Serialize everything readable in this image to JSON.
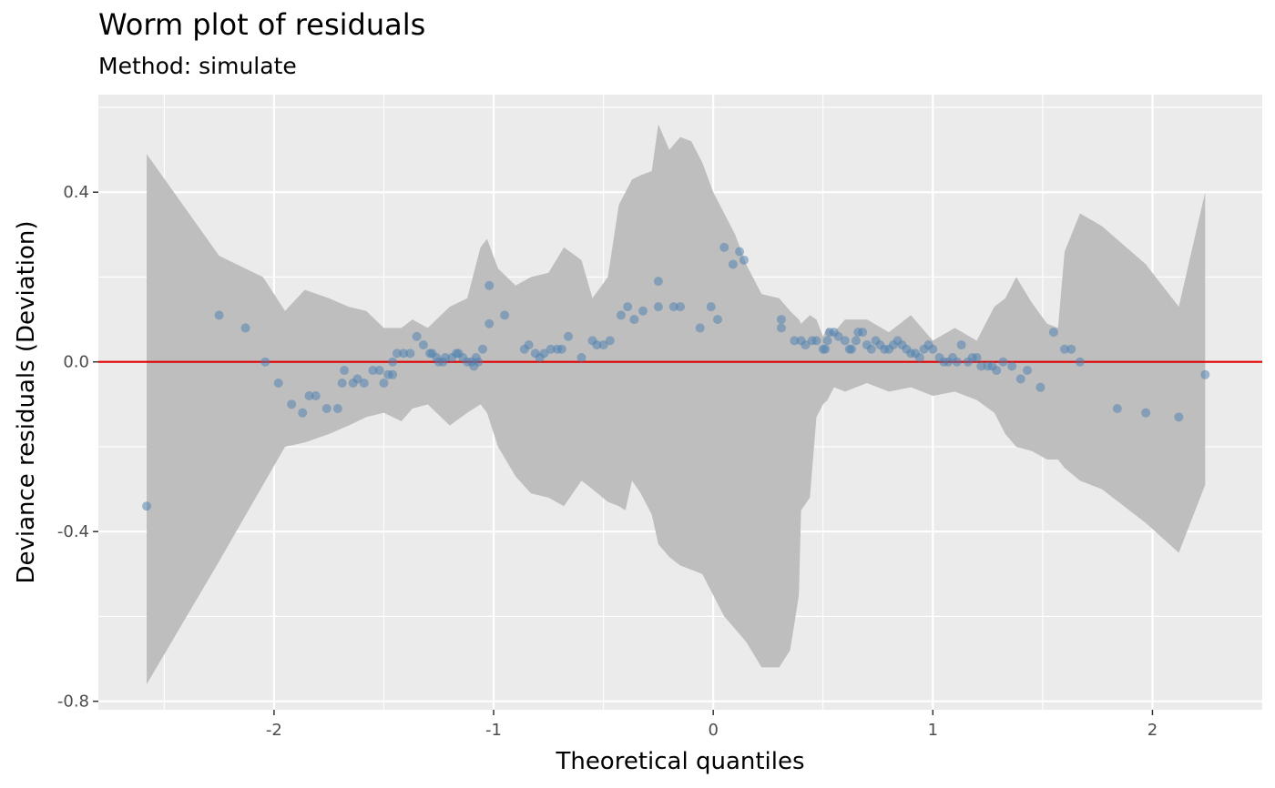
{
  "chart_data": {
    "type": "scatter",
    "title": "Worm plot of residuals",
    "subtitle": "Method: simulate",
    "xlabel": "Theoretical quantiles",
    "ylabel": "Deviance residuals (Deviation)",
    "xlim": [
      -2.8,
      2.5
    ],
    "ylim": [
      -0.82,
      0.63
    ],
    "x_ticks": [
      -2,
      -1,
      0,
      1,
      2
    ],
    "x_tick_labels": [
      "-2",
      "-1",
      "0",
      "1",
      "2"
    ],
    "y_ticks": [
      -0.8,
      -0.4,
      0.0,
      0.4
    ],
    "y_tick_labels": [
      "-0.8",
      "-0.4",
      "0.0",
      "0.4"
    ],
    "grid": true,
    "reference_line": {
      "y": 0,
      "color": "#e00000"
    },
    "colors": {
      "panel": "#ebebeb",
      "grid": "#ffffff",
      "band": "#bebebe",
      "points": "#4a7eb0",
      "reference_line": "#e00000"
    },
    "band": {
      "x": [
        -2.58,
        -2.25,
        -2.05,
        -1.95,
        -1.86,
        -1.75,
        -1.66,
        -1.58,
        -1.5,
        -1.42,
        -1.37,
        -1.3,
        -1.2,
        -1.12,
        -1.06,
        -1.03,
        -0.98,
        -0.9,
        -0.83,
        -0.75,
        -0.68,
        -0.6,
        -0.55,
        -0.48,
        -0.43,
        -0.4,
        -0.37,
        -0.33,
        -0.28,
        -0.25,
        -0.2,
        -0.15,
        -0.1,
        -0.05,
        0.0,
        0.05,
        0.1,
        0.15,
        0.22,
        0.3,
        0.35,
        0.39,
        0.4,
        0.44,
        0.47,
        0.5,
        0.52,
        0.55,
        0.6,
        0.7,
        0.8,
        0.9,
        1.0,
        1.1,
        1.2,
        1.28,
        1.33,
        1.38,
        1.45,
        1.52,
        1.57,
        1.6,
        1.67,
        1.77,
        1.97,
        2.12,
        2.24
      ],
      "upper": [
        0.49,
        0.25,
        0.2,
        0.12,
        0.17,
        0.15,
        0.13,
        0.12,
        0.08,
        0.08,
        0.1,
        0.08,
        0.13,
        0.15,
        0.27,
        0.29,
        0.22,
        0.18,
        0.2,
        0.21,
        0.27,
        0.24,
        0.15,
        0.2,
        0.37,
        0.4,
        0.43,
        0.44,
        0.45,
        0.56,
        0.5,
        0.53,
        0.52,
        0.47,
        0.4,
        0.35,
        0.3,
        0.23,
        0.16,
        0.15,
        0.12,
        0.1,
        0.09,
        0.11,
        0.1,
        0.06,
        0.08,
        0.07,
        0.1,
        0.1,
        0.07,
        0.11,
        0.05,
        0.08,
        0.05,
        0.13,
        0.15,
        0.2,
        0.14,
        0.09,
        0.08,
        0.26,
        0.35,
        0.32,
        0.23,
        0.13,
        0.4
      ],
      "lower": [
        -0.76,
        -0.47,
        -0.29,
        -0.2,
        -0.19,
        -0.17,
        -0.15,
        -0.13,
        -0.12,
        -0.14,
        -0.11,
        -0.1,
        -0.15,
        -0.12,
        -0.1,
        -0.12,
        -0.2,
        -0.27,
        -0.31,
        -0.32,
        -0.34,
        -0.28,
        -0.3,
        -0.33,
        -0.34,
        -0.35,
        -0.28,
        -0.31,
        -0.36,
        -0.43,
        -0.46,
        -0.48,
        -0.49,
        -0.5,
        -0.55,
        -0.6,
        -0.63,
        -0.66,
        -0.72,
        -0.72,
        -0.68,
        -0.55,
        -0.35,
        -0.32,
        -0.13,
        -0.1,
        -0.09,
        -0.06,
        -0.07,
        -0.05,
        -0.07,
        -0.06,
        -0.08,
        -0.07,
        -0.09,
        -0.12,
        -0.17,
        -0.2,
        -0.21,
        -0.23,
        -0.23,
        -0.25,
        -0.28,
        -0.3,
        -0.38,
        -0.45,
        -0.29
      ]
    },
    "points": [
      [
        -2.58,
        -0.34
      ],
      [
        -2.25,
        0.11
      ],
      [
        -2.13,
        0.08
      ],
      [
        -2.04,
        0.0
      ],
      [
        -1.98,
        -0.05
      ],
      [
        -1.92,
        -0.1
      ],
      [
        -1.87,
        -0.12
      ],
      [
        -1.84,
        -0.08
      ],
      [
        -1.81,
        -0.08
      ],
      [
        -1.76,
        -0.11
      ],
      [
        -1.71,
        -0.11
      ],
      [
        -1.69,
        -0.05
      ],
      [
        -1.68,
        -0.02
      ],
      [
        -1.64,
        -0.05
      ],
      [
        -1.62,
        -0.04
      ],
      [
        -1.59,
        -0.05
      ],
      [
        -1.55,
        -0.02
      ],
      [
        -1.52,
        -0.02
      ],
      [
        -1.5,
        -0.05
      ],
      [
        -1.48,
        -0.03
      ],
      [
        -1.46,
        -0.03
      ],
      [
        -1.46,
        0.0
      ],
      [
        -1.44,
        0.02
      ],
      [
        -1.41,
        0.02
      ],
      [
        -1.38,
        0.02
      ],
      [
        -1.35,
        0.06
      ],
      [
        -1.32,
        0.04
      ],
      [
        -1.29,
        0.02
      ],
      [
        -1.28,
        0.02
      ],
      [
        -1.26,
        0.01
      ],
      [
        -1.25,
        0.0
      ],
      [
        -1.23,
        0.0
      ],
      [
        -1.22,
        0.01
      ],
      [
        -1.19,
        0.01
      ],
      [
        -1.17,
        0.02
      ],
      [
        -1.16,
        0.02
      ],
      [
        -1.14,
        0.01
      ],
      [
        -1.12,
        0.0
      ],
      [
        -1.1,
        0.0
      ],
      [
        -1.09,
        -0.01
      ],
      [
        -1.08,
        0.01
      ],
      [
        -1.07,
        0.0
      ],
      [
        -1.05,
        0.03
      ],
      [
        -1.02,
        0.09
      ],
      [
        -1.02,
        0.18
      ],
      [
        -0.95,
        0.11
      ],
      [
        -0.86,
        0.03
      ],
      [
        -0.84,
        0.04
      ],
      [
        -0.81,
        0.02
      ],
      [
        -0.79,
        0.01
      ],
      [
        -0.77,
        0.02
      ],
      [
        -0.74,
        0.03
      ],
      [
        -0.71,
        0.03
      ],
      [
        -0.69,
        0.03
      ],
      [
        -0.66,
        0.06
      ],
      [
        -0.6,
        0.01
      ],
      [
        -0.55,
        0.05
      ],
      [
        -0.53,
        0.04
      ],
      [
        -0.5,
        0.04
      ],
      [
        -0.47,
        0.05
      ],
      [
        -0.42,
        0.11
      ],
      [
        -0.39,
        0.13
      ],
      [
        -0.36,
        0.1
      ],
      [
        -0.32,
        0.12
      ],
      [
        -0.25,
        0.13
      ],
      [
        -0.25,
        0.19
      ],
      [
        -0.18,
        0.13
      ],
      [
        -0.15,
        0.13
      ],
      [
        -0.06,
        0.08
      ],
      [
        -0.01,
        0.13
      ],
      [
        0.02,
        0.1
      ],
      [
        0.05,
        0.27
      ],
      [
        0.09,
        0.23
      ],
      [
        0.12,
        0.26
      ],
      [
        0.14,
        0.24
      ],
      [
        0.31,
        0.1
      ],
      [
        0.31,
        0.08
      ],
      [
        0.37,
        0.05
      ],
      [
        0.4,
        0.05
      ],
      [
        0.42,
        0.04
      ],
      [
        0.45,
        0.05
      ],
      [
        0.47,
        0.05
      ],
      [
        0.5,
        0.03
      ],
      [
        0.51,
        0.03
      ],
      [
        0.52,
        0.05
      ],
      [
        0.53,
        0.07
      ],
      [
        0.55,
        0.07
      ],
      [
        0.57,
        0.06
      ],
      [
        0.6,
        0.05
      ],
      [
        0.62,
        0.03
      ],
      [
        0.63,
        0.03
      ],
      [
        0.65,
        0.05
      ],
      [
        0.66,
        0.07
      ],
      [
        0.68,
        0.07
      ],
      [
        0.7,
        0.04
      ],
      [
        0.72,
        0.03
      ],
      [
        0.74,
        0.05
      ],
      [
        0.76,
        0.04
      ],
      [
        0.78,
        0.03
      ],
      [
        0.8,
        0.03
      ],
      [
        0.82,
        0.04
      ],
      [
        0.84,
        0.05
      ],
      [
        0.86,
        0.04
      ],
      [
        0.88,
        0.03
      ],
      [
        0.9,
        0.02
      ],
      [
        0.92,
        0.02
      ],
      [
        0.94,
        0.01
      ],
      [
        0.96,
        0.03
      ],
      [
        0.98,
        0.04
      ],
      [
        1.0,
        0.03
      ],
      [
        1.03,
        0.01
      ],
      [
        1.05,
        0.0
      ],
      [
        1.07,
        0.0
      ],
      [
        1.09,
        0.01
      ],
      [
        1.11,
        0.0
      ],
      [
        1.13,
        0.04
      ],
      [
        1.16,
        0.0
      ],
      [
        1.18,
        0.01
      ],
      [
        1.2,
        0.01
      ],
      [
        1.22,
        -0.01
      ],
      [
        1.25,
        -0.01
      ],
      [
        1.27,
        -0.01
      ],
      [
        1.29,
        -0.02
      ],
      [
        1.32,
        0.0
      ],
      [
        1.36,
        -0.01
      ],
      [
        1.4,
        -0.04
      ],
      [
        1.43,
        -0.02
      ],
      [
        1.49,
        -0.06
      ],
      [
        1.55,
        0.07
      ],
      [
        1.6,
        0.03
      ],
      [
        1.63,
        0.03
      ],
      [
        1.67,
        0.0
      ],
      [
        1.84,
        -0.11
      ],
      [
        1.97,
        -0.12
      ],
      [
        2.12,
        -0.13
      ],
      [
        2.24,
        -0.03
      ]
    ]
  }
}
